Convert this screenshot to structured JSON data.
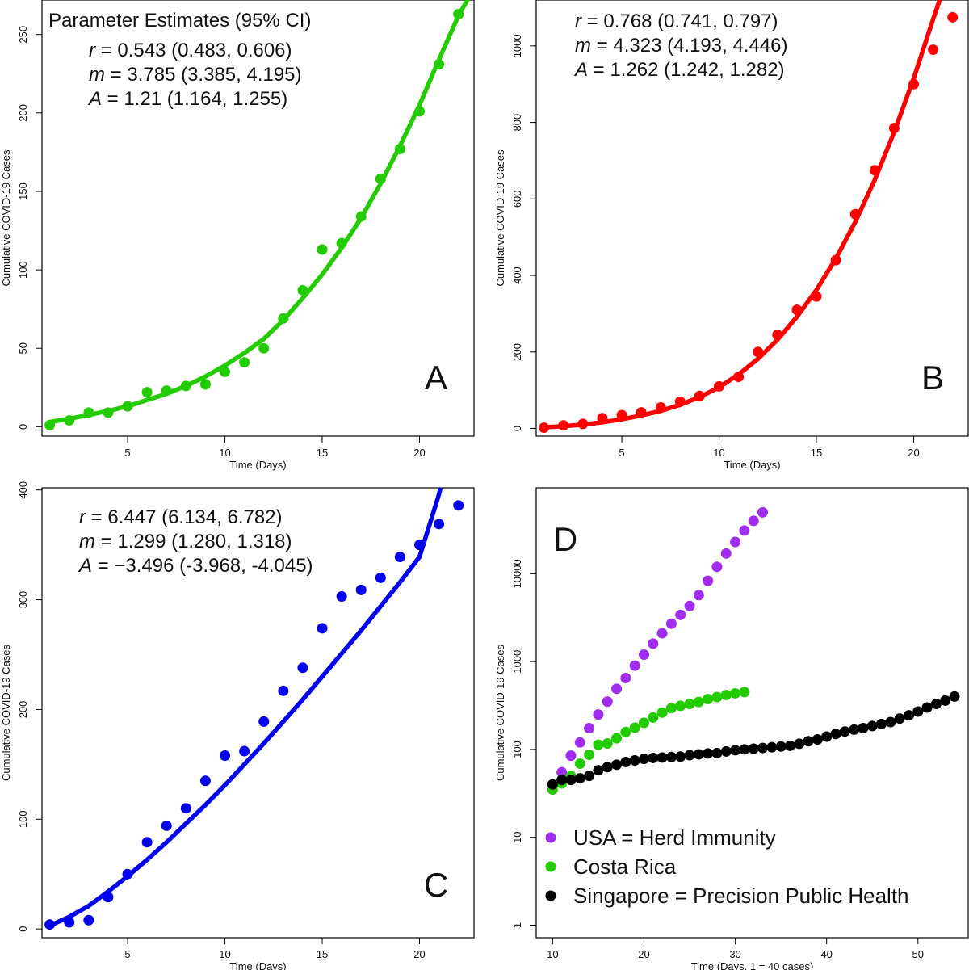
{
  "figure": {
    "x_label": "Time (Days)",
    "y_label": "Cumulative COVID-19 Cases"
  },
  "chart_data": [
    {
      "id": "A",
      "type": "scatter",
      "panel_label": "A",
      "color": "#22cc00",
      "xlabel": "Time (Days)",
      "ylabel": "Cumulative COVID-19 Cases",
      "xlim": [
        0.6,
        22.8
      ],
      "ylim": [
        -6,
        272
      ],
      "xticks": [
        5,
        10,
        15,
        20
      ],
      "yticks": [
        0,
        50,
        100,
        150,
        200,
        250
      ],
      "estimates_title": "Parameter Estimates (95% CI)",
      "estimates": [
        {
          "symbol": "r",
          "value": "0.543",
          "ci": "(0.483, 0.606)"
        },
        {
          "symbol": "m",
          "value": "3.785",
          "ci": "(3.385, 4.195)"
        },
        {
          "symbol": "A",
          "value": "1.21",
          "ci": "(1.164, 1.255)"
        }
      ],
      "points": {
        "x": [
          1,
          2,
          3,
          4,
          5,
          6,
          7,
          8,
          9,
          10,
          11,
          12,
          13,
          14,
          15,
          16,
          17,
          18,
          19,
          20,
          21,
          22
        ],
        "y": [
          1,
          4,
          9,
          9,
          13,
          22,
          23,
          26,
          27,
          35,
          41,
          50,
          69,
          87,
          113,
          117,
          134,
          158,
          177,
          201,
          231,
          263
        ]
      },
      "fit": {
        "x": [
          1,
          2,
          3,
          4,
          5,
          6,
          7,
          8,
          9,
          10,
          11,
          12,
          13,
          14,
          15,
          16,
          17,
          18,
          19,
          20,
          21,
          22,
          22.6
        ],
        "y": [
          3,
          5,
          7.5,
          10,
          13,
          17,
          21,
          26,
          32,
          39,
          47,
          56,
          68,
          82,
          97,
          114,
          133,
          155,
          179,
          205,
          234,
          262,
          275
        ]
      }
    },
    {
      "id": "B",
      "type": "scatter",
      "panel_label": "B",
      "color": "#ff0000",
      "xlabel": "Time (Days)",
      "ylabel": "Cumulative COVID-19 Cases",
      "xlim": [
        0.6,
        22.8
      ],
      "ylim": [
        -20,
        1120
      ],
      "xticks": [
        5,
        10,
        15,
        20
      ],
      "yticks": [
        0,
        200,
        400,
        600,
        800,
        1000
      ],
      "estimates": [
        {
          "symbol": "r",
          "value": "0.768",
          "ci": "(0.741, 0.797)"
        },
        {
          "symbol": "m",
          "value": "4.323",
          "ci": "(4.193, 4.446)"
        },
        {
          "symbol": "A",
          "value": "1.262",
          "ci": "(1.242, 1.282)"
        }
      ],
      "points": {
        "x": [
          1,
          2,
          3,
          4,
          5,
          6,
          7,
          8,
          9,
          10,
          11,
          12,
          13,
          14,
          15,
          16,
          17,
          18,
          19,
          20,
          21,
          22
        ],
        "y": [
          2,
          8,
          12,
          27,
          35,
          42,
          55,
          70,
          85,
          110,
          135,
          200,
          245,
          310,
          345,
          440,
          560,
          675,
          785,
          900,
          990,
          1075
        ]
      },
      "fit": {
        "x": [
          1,
          2,
          3,
          4,
          5,
          6,
          7,
          8,
          9,
          10,
          11,
          12,
          13,
          14,
          15,
          16,
          17,
          18,
          19,
          20,
          21,
          21.6
        ],
        "y": [
          3,
          6,
          10,
          16,
          24,
          34,
          46,
          62,
          82,
          108,
          141,
          182,
          232,
          292,
          362,
          444,
          540,
          650,
          775,
          915,
          1070,
          1160
        ]
      }
    },
    {
      "id": "C",
      "type": "scatter",
      "panel_label": "C",
      "color": "#0000ee",
      "xlabel": "Time (Days)",
      "ylabel": "Cumulative COVID-19 Cases",
      "xlim": [
        0.6,
        22.8
      ],
      "ylim": [
        -8,
        402
      ],
      "xticks": [
        5,
        10,
        15,
        20
      ],
      "yticks": [
        0,
        100,
        200,
        300,
        400
      ],
      "estimates": [
        {
          "symbol": "r",
          "value": "6.447",
          "ci": "(6.134, 6.782)"
        },
        {
          "symbol": "m",
          "value": "1.299",
          "ci": "(1.280, 1.318)"
        },
        {
          "symbol": "A",
          "value": "−3.496",
          "ci": "(-3.968, -4.045)"
        }
      ],
      "points": {
        "x": [
          1,
          2,
          3,
          4,
          5,
          6,
          7,
          8,
          9,
          10,
          11,
          12,
          13,
          14,
          15,
          16,
          17,
          18,
          19,
          20,
          21,
          22
        ],
        "y": [
          4,
          6,
          8,
          29,
          50,
          79,
          94,
          110,
          135,
          158,
          162,
          189,
          217,
          238,
          274,
          303,
          309,
          320,
          339,
          350,
          369,
          386
        ]
      },
      "fit": {
        "x": [
          1,
          2,
          3,
          4,
          5,
          6,
          7,
          8,
          9,
          10,
          11,
          12,
          13,
          14,
          15,
          16,
          17,
          18,
          19,
          20,
          21,
          21.3
        ],
        "y": [
          3,
          11,
          21,
          34,
          48,
          63,
          79,
          96,
          113,
          131,
          150,
          169,
          189,
          209,
          230,
          251,
          272,
          294,
          316,
          339,
          396,
          420
        ]
      }
    },
    {
      "id": "D",
      "type": "scatter",
      "panel_label": "D",
      "xlabel": "Time (Days, 1 = 40 cases)",
      "ylabel": "Cumulative COVID-19 Cases",
      "yscale": "log",
      "xlim": [
        8.2,
        55.5
      ],
      "ylim": [
        0.72,
        95000
      ],
      "xticks": [
        10,
        20,
        30,
        40,
        50
      ],
      "yticks": [
        1,
        10,
        100,
        1000,
        10000
      ],
      "series": [
        {
          "name": "USA = Herd Immunity",
          "color": "#a02cf0",
          "x": [
            10,
            11,
            12,
            13,
            14,
            15,
            16,
            17,
            18,
            19,
            20,
            21,
            22,
            23,
            24,
            25,
            26,
            27,
            28,
            29,
            30,
            31,
            32,
            33
          ],
          "y": [
            40,
            55,
            85,
            120,
            175,
            250,
            350,
            490,
            650,
            900,
            1200,
            1600,
            2100,
            2700,
            3400,
            4300,
            5700,
            8300,
            12000,
            17000,
            23000,
            31000,
            40000,
            50000
          ]
        },
        {
          "name": "Costa Rica",
          "color": "#22cc00",
          "x": [
            10,
            11,
            12,
            13,
            14,
            15,
            16,
            17,
            18,
            19,
            20,
            21,
            22,
            23,
            24,
            25,
            26,
            27,
            28,
            29,
            30,
            31
          ],
          "y": [
            35,
            41,
            50,
            69,
            87,
            113,
            117,
            134,
            158,
            177,
            201,
            231,
            263,
            295,
            314,
            330,
            347,
            375,
            395,
            416,
            435,
            450
          ]
        },
        {
          "name": "Singapore = Precision Public Health",
          "color": "#000000",
          "x": [
            10,
            11,
            12,
            13,
            14,
            15,
            16,
            17,
            18,
            19,
            20,
            21,
            22,
            23,
            24,
            25,
            26,
            27,
            28,
            29,
            30,
            31,
            32,
            33,
            34,
            35,
            36,
            37,
            38,
            39,
            40,
            41,
            42,
            43,
            44,
            45,
            46,
            47,
            48,
            49,
            50,
            51,
            52,
            53,
            54
          ],
          "y": [
            40,
            45,
            45,
            47,
            50,
            58,
            63,
            67,
            72,
            75,
            78,
            80,
            81,
            82,
            83,
            86,
            88,
            90,
            91,
            95,
            98,
            100,
            102,
            104,
            106,
            108,
            110,
            116,
            124,
            130,
            140,
            150,
            160,
            168,
            175,
            185,
            195,
            205,
            225,
            245,
            270,
            300,
            330,
            360,
            400
          ]
        }
      ]
    }
  ]
}
